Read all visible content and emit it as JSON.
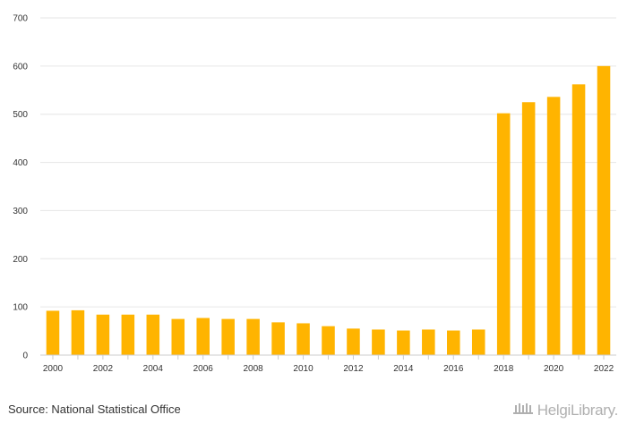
{
  "chart_data": {
    "type": "bar",
    "categories": [
      "2000",
      "2001",
      "2002",
      "2003",
      "2004",
      "2005",
      "2006",
      "2007",
      "2008",
      "2009",
      "2010",
      "2011",
      "2012",
      "2013",
      "2014",
      "2015",
      "2016",
      "2017",
      "2018",
      "2019",
      "2020",
      "2021",
      "2022"
    ],
    "values": [
      92,
      93,
      84,
      84,
      84,
      75,
      77,
      75,
      75,
      68,
      66,
      60,
      55,
      53,
      51,
      53,
      51,
      53,
      502,
      525,
      536,
      562,
      600
    ],
    "x_tick_labels": [
      "2000",
      "2002",
      "2004",
      "2006",
      "2008",
      "2010",
      "2012",
      "2014",
      "2016",
      "2018",
      "2020",
      "2022"
    ],
    "y_ticks": [
      0,
      100,
      200,
      300,
      400,
      500,
      600,
      700
    ],
    "ylim": [
      0,
      700
    ],
    "grid": true,
    "title": "",
    "xlabel": "",
    "ylabel": "",
    "bar_color": "#ffb400",
    "grid_color": "#e6e6e6"
  },
  "footer": {
    "source": "Source: National Statistical Office",
    "brand": "HelgiLibrary."
  }
}
